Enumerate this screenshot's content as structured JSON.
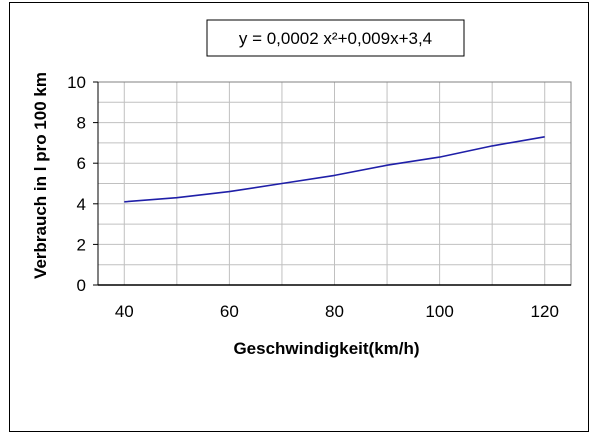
{
  "chart_data": {
    "type": "line",
    "x": [
      40,
      50,
      60,
      70,
      80,
      90,
      100,
      110,
      120
    ],
    "series": [
      {
        "values": [
          4.1,
          4.3,
          4.6,
          5.0,
          5.4,
          5.9,
          6.3,
          6.85,
          7.3
        ],
        "color": "#1f1fa8"
      }
    ],
    "xlabel": "Geschwindigkeit(km/h)",
    "ylabel": "Verbrauch in l pro 100 km",
    "annotation": "y = 0,0002 x²+0,009x+3,4",
    "xlim": [
      35,
      125
    ],
    "ylim": [
      0,
      10
    ],
    "xticks": [
      40,
      60,
      80,
      100,
      120
    ],
    "yticks": [
      0,
      2,
      4,
      6,
      8,
      10
    ],
    "grid": true,
    "legend": "none"
  }
}
